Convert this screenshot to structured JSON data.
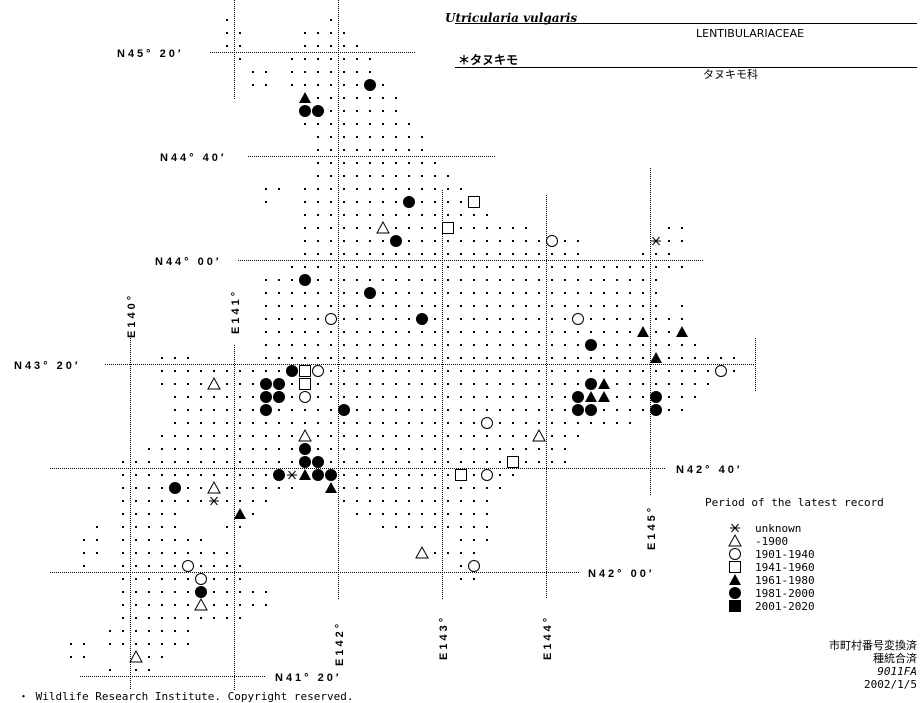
{
  "header": {
    "scientific_name": "Utricularia vulgaris",
    "family_latin": "LENTIBULARIACEAE",
    "japanese_name": "＊タヌキモ",
    "family_japanese": "タヌキモ科"
  },
  "map": {
    "lat_labels": [
      "N45° 20′",
      "N44° 40′",
      "N44° 00′",
      "N43° 20′",
      "N42° 40′",
      "N42° 00′",
      "N41° 20′"
    ],
    "lon_labels": [
      "E140°",
      "E141°",
      "E142°",
      "E143°",
      "E144°",
      "E145°"
    ],
    "records": [
      {
        "period": "1981-2000",
        "lat": 45.125,
        "lon": 142.3125
      },
      {
        "period": "1961-1980",
        "lat": 45.0417,
        "lon": 141.6875
      },
      {
        "period": "1981-2000",
        "lat": 44.9583,
        "lon": 141.6875
      },
      {
        "period": "1981-2000",
        "lat": 44.9583,
        "lon": 141.8125
      },
      {
        "period": "1981-2000",
        "lat": 44.375,
        "lon": 142.6875
      },
      {
        "period": "1941-1960",
        "lat": 44.375,
        "lon": 143.3125
      },
      {
        "period": "-1900",
        "lat": 44.2083,
        "lon": 142.4375
      },
      {
        "period": "1941-1960",
        "lat": 44.2083,
        "lon": 143.0625
      },
      {
        "period": "1981-2000",
        "lat": 44.125,
        "lon": 142.5625
      },
      {
        "period": "1901-1940",
        "lat": 44.125,
        "lon": 144.0625
      },
      {
        "period": "unknown",
        "lat": 44.125,
        "lon": 145.0625
      },
      {
        "period": "1981-2000",
        "lat": 43.875,
        "lon": 141.6875
      },
      {
        "period": "1981-2000",
        "lat": 43.7917,
        "lon": 142.3125
      },
      {
        "period": "1901-1940",
        "lat": 43.625,
        "lon": 141.9375
      },
      {
        "period": "1981-2000",
        "lat": 43.625,
        "lon": 142.8125
      },
      {
        "period": "1901-1940",
        "lat": 43.625,
        "lon": 144.3125
      },
      {
        "period": "1961-1980",
        "lat": 43.5417,
        "lon": 144.9375
      },
      {
        "period": "1961-1980",
        "lat": 43.5417,
        "lon": 145.3125
      },
      {
        "period": "1981-2000",
        "lat": 43.4583,
        "lon": 144.4375
      },
      {
        "period": "1961-1980",
        "lat": 43.375,
        "lon": 145.0625
      },
      {
        "period": "1981-2000",
        "lat": 43.2917,
        "lon": 141.5625
      },
      {
        "period": "1941-1960",
        "lat": 43.2917,
        "lon": 141.6875
      },
      {
        "period": "1901-1940",
        "lat": 43.2917,
        "lon": 141.8125
      },
      {
        "period": "1901-1940",
        "lat": 43.2917,
        "lon": 145.6875
      },
      {
        "period": "-1900",
        "lat": 43.2083,
        "lon": 140.8125
      },
      {
        "period": "1981-2000",
        "lat": 43.2083,
        "lon": 141.3125
      },
      {
        "period": "1981-2000",
        "lat": 43.2083,
        "lon": 141.4375
      },
      {
        "period": "1941-1960",
        "lat": 43.2083,
        "lon": 141.6875
      },
      {
        "period": "1981-2000",
        "lat": 43.2083,
        "lon": 144.4375
      },
      {
        "period": "1961-1980",
        "lat": 43.2083,
        "lon": 144.5625
      },
      {
        "period": "1981-2000",
        "lat": 43.125,
        "lon": 141.3125
      },
      {
        "period": "1981-2000",
        "lat": 43.125,
        "lon": 141.4375
      },
      {
        "period": "1901-1940",
        "lat": 43.125,
        "lon": 141.6875
      },
      {
        "period": "1981-2000",
        "lat": 43.125,
        "lon": 144.3125
      },
      {
        "period": "1961-1980",
        "lat": 43.125,
        "lon": 144.4375
      },
      {
        "period": "1961-1980",
        "lat": 43.125,
        "lon": 144.5625
      },
      {
        "period": "1981-2000",
        "lat": 43.125,
        "lon": 145.0625
      },
      {
        "period": "1981-2000",
        "lat": 43.0417,
        "lon": 141.3125
      },
      {
        "period": "1981-2000",
        "lat": 43.0417,
        "lon": 142.0625
      },
      {
        "period": "1981-2000",
        "lat": 43.0417,
        "lon": 144.3125
      },
      {
        "period": "1981-2000",
        "lat": 43.0417,
        "lon": 144.4375
      },
      {
        "period": "1981-2000",
        "lat": 43.0417,
        "lon": 145.0625
      },
      {
        "period": "1901-1940",
        "lat": 42.9583,
        "lon": 143.4375
      },
      {
        "period": "-1900",
        "lat": 42.875,
        "lon": 141.6875
      },
      {
        "period": "-1900",
        "lat": 42.875,
        "lon": 143.9375
      },
      {
        "period": "1981-2000",
        "lat": 42.7917,
        "lon": 141.6875
      },
      {
        "period": "1981-2000",
        "lat": 42.7083,
        "lon": 141.6875
      },
      {
        "period": "1981-2000",
        "lat": 42.7083,
        "lon": 141.8125
      },
      {
        "period": "1941-1960",
        "lat": 42.7083,
        "lon": 143.6875
      },
      {
        "period": "1981-2000",
        "lat": 42.625,
        "lon": 141.4375
      },
      {
        "period": "unknown",
        "lat": 42.625,
        "lon": 141.5625
      },
      {
        "period": "1961-1980",
        "lat": 42.625,
        "lon": 141.6875
      },
      {
        "period": "1981-2000",
        "lat": 42.625,
        "lon": 141.8125
      },
      {
        "period": "1981-2000",
        "lat": 42.625,
        "lon": 141.9375
      },
      {
        "period": "1941-1960",
        "lat": 42.625,
        "lon": 143.1875
      },
      {
        "period": "1901-1940",
        "lat": 42.625,
        "lon": 143.4375
      },
      {
        "period": "1981-2000",
        "lat": 42.5417,
        "lon": 140.4375
      },
      {
        "period": "-1900",
        "lat": 42.5417,
        "lon": 140.8125
      },
      {
        "period": "1961-1980",
        "lat": 42.5417,
        "lon": 141.9375
      },
      {
        "period": "unknown",
        "lat": 42.4583,
        "lon": 140.8125
      },
      {
        "period": "1961-1980",
        "lat": 42.375,
        "lon": 141.0625
      },
      {
        "period": "-1900",
        "lat": 42.125,
        "lon": 142.8125
      },
      {
        "period": "1901-1940",
        "lat": 42.0417,
        "lon": 140.5625
      },
      {
        "period": "1901-1940",
        "lat": 42.0417,
        "lon": 143.3125
      },
      {
        "period": "1901-1940",
        "lat": 41.9583,
        "lon": 140.6875
      },
      {
        "period": "1981-2000",
        "lat": 41.875,
        "lon": 140.6875
      },
      {
        "period": "-1900",
        "lat": 41.7917,
        "lon": 140.6875
      },
      {
        "period": "-1900",
        "lat": 41.4583,
        "lon": 140.0625
      }
    ]
  },
  "legend": {
    "title": "Period of the latest record",
    "items": [
      {
        "symbol": "asterisk",
        "label": "unknown"
      },
      {
        "symbol": "open-triangle",
        "label": "     -1900"
      },
      {
        "symbol": "open-circle",
        "label": "1901-1940"
      },
      {
        "symbol": "open-square",
        "label": "1941-1960"
      },
      {
        "symbol": "filled-triangle",
        "label": "1961-1980"
      },
      {
        "symbol": "filled-circle",
        "label": "1981-2000"
      },
      {
        "symbol": "filled-square",
        "label": "2001-2020"
      }
    ]
  },
  "notes": {
    "line1": "市町村番号変換済",
    "line2": "種統合済",
    "code": "9011FA",
    "date": "2002/1/5"
  },
  "copyright": "・ Wildlife Research Institute. Copyright reserved."
}
